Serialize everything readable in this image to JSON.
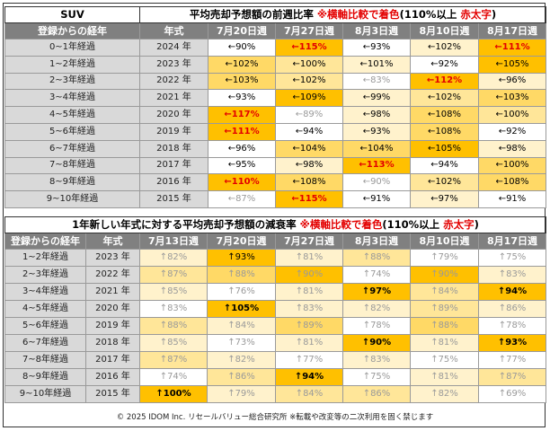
{
  "colors": {
    "level_0": "#ffffff",
    "level_1": "#fff2cc",
    "level_2": "#ffe699",
    "level_3": "#ffd966",
    "level_4": "#ffc000",
    "header_bg": "#808080",
    "label_bg": "#d9d9d9",
    "highlight_text": "#e30000"
  },
  "table1": {
    "title": {
      "segment": "SUV",
      "main": "平均売却予想額の前週比率",
      "note_red": "※横軸比較で着色",
      "note_black": "(110%以上",
      "note_red2": "赤太字",
      "note_close": ")"
    },
    "headers": [
      "登録からの経年",
      "年式",
      "7月20日週",
      "7月27日週",
      "8月3日週",
      "8月10日週",
      "8月17日週"
    ],
    "rows": [
      {
        "age": "0~1年経過",
        "year": "2024 年",
        "cells": [
          {
            "text": "←90%",
            "level": 0
          },
          {
            "text": "←115%",
            "level": 4,
            "hi": true
          },
          {
            "text": "←93%",
            "level": 0
          },
          {
            "text": "←102%",
            "level": 1
          },
          {
            "text": "←111%",
            "level": 4,
            "hi": true
          }
        ]
      },
      {
        "age": "1~2年経過",
        "year": "2023 年",
        "cells": [
          {
            "text": "←102%",
            "level": 3
          },
          {
            "text": "←100%",
            "level": 2
          },
          {
            "text": "←101%",
            "level": 1
          },
          {
            "text": "←92%",
            "level": 0
          },
          {
            "text": "←105%",
            "level": 4
          }
        ]
      },
      {
        "age": "2~3年経過",
        "year": "2022 年",
        "cells": [
          {
            "text": "←103%",
            "level": 3
          },
          {
            "text": "←102%",
            "level": 2
          },
          {
            "text": "←83%",
            "level": 0,
            "faint": true
          },
          {
            "text": "←112%",
            "level": 4,
            "hi": true
          },
          {
            "text": "←96%",
            "level": 1
          }
        ]
      },
      {
        "age": "3~4年経過",
        "year": "2021 年",
        "cells": [
          {
            "text": "←93%",
            "level": 0
          },
          {
            "text": "←109%",
            "level": 4
          },
          {
            "text": "←99%",
            "level": 1
          },
          {
            "text": "←102%",
            "level": 2
          },
          {
            "text": "←103%",
            "level": 3
          }
        ]
      },
      {
        "age": "4~5年経過",
        "year": "2020 年",
        "cells": [
          {
            "text": "←117%",
            "level": 4,
            "hi": true
          },
          {
            "text": "←89%",
            "level": 0,
            "faint": true
          },
          {
            "text": "←98%",
            "level": 1
          },
          {
            "text": "←108%",
            "level": 3
          },
          {
            "text": "←100%",
            "level": 2
          }
        ]
      },
      {
        "age": "5~6年経過",
        "year": "2019 年",
        "cells": [
          {
            "text": "←111%",
            "level": 4,
            "hi": true
          },
          {
            "text": "←94%",
            "level": 0
          },
          {
            "text": "←93%",
            "level": 1
          },
          {
            "text": "←108%",
            "level": 3
          },
          {
            "text": "←92%",
            "level": 0
          }
        ]
      },
      {
        "age": "6~7年経過",
        "year": "2018 年",
        "cells": [
          {
            "text": "←96%",
            "level": 0
          },
          {
            "text": "←104%",
            "level": 3
          },
          {
            "text": "←104%",
            "level": 3
          },
          {
            "text": "←105%",
            "level": 4
          },
          {
            "text": "←98%",
            "level": 1
          }
        ]
      },
      {
        "age": "7~8年経過",
        "year": "2017 年",
        "cells": [
          {
            "text": "←95%",
            "level": 0
          },
          {
            "text": "←98%",
            "level": 1
          },
          {
            "text": "←113%",
            "level": 4,
            "hi": true
          },
          {
            "text": "←94%",
            "level": 0
          },
          {
            "text": "←100%",
            "level": 3
          }
        ]
      },
      {
        "age": "8~9年経過",
        "year": "2016 年",
        "cells": [
          {
            "text": "←110%",
            "level": 4,
            "hi": true
          },
          {
            "text": "←108%",
            "level": 3
          },
          {
            "text": "←90%",
            "level": 0,
            "faint": true
          },
          {
            "text": "←102%",
            "level": 2
          },
          {
            "text": "←108%",
            "level": 3
          }
        ]
      },
      {
        "age": "9~10年経過",
        "year": "2015 年",
        "cells": [
          {
            "text": "←87%",
            "level": 0,
            "faint": true
          },
          {
            "text": "←115%",
            "level": 4,
            "hi": true
          },
          {
            "text": "←91%",
            "level": 0
          },
          {
            "text": "←97%",
            "level": 1
          },
          {
            "text": "←91%",
            "level": 0
          }
        ]
      }
    ]
  },
  "table2": {
    "title": {
      "main": "1年新しい年式に対する平均売却予想額の減衰率",
      "note_red": "※横軸比較で着色",
      "note_black": "(110%以上",
      "note_red2": "赤太字",
      "note_close": ")"
    },
    "headers": [
      "登録からの経年",
      "年式",
      "7月13日週",
      "7月20日週",
      "7月27日週",
      "8月3日週",
      "8月10日週",
      "8月17日週"
    ],
    "rows": [
      {
        "age": "1~2年経過",
        "year": "2023 年",
        "cells": [
          {
            "text": "↑82%",
            "level": 1,
            "faint": true
          },
          {
            "text": "↑93%",
            "level": 4
          },
          {
            "text": "↑81%",
            "level": 1,
            "faint": true
          },
          {
            "text": "↑88%",
            "level": 2,
            "faint": true
          },
          {
            "text": "↑79%",
            "level": 0,
            "faint": true
          },
          {
            "text": "↑75%",
            "level": 0,
            "faint": true
          }
        ]
      },
      {
        "age": "2~3年経過",
        "year": "2022 年",
        "cells": [
          {
            "text": "↑87%",
            "level": 2,
            "faint": true
          },
          {
            "text": "↑88%",
            "level": 3,
            "faint": true
          },
          {
            "text": "↑90%",
            "level": 4,
            "faint": true
          },
          {
            "text": "↑74%",
            "level": 0,
            "faint": true
          },
          {
            "text": "↑90%",
            "level": 4,
            "faint": true
          },
          {
            "text": "↑83%",
            "level": 1,
            "faint": true
          }
        ]
      },
      {
        "age": "3~4年経過",
        "year": "2021 年",
        "cells": [
          {
            "text": "↑85%",
            "level": 1,
            "faint": true
          },
          {
            "text": "↑76%",
            "level": 0,
            "faint": true
          },
          {
            "text": "↑81%",
            "level": 1,
            "faint": true
          },
          {
            "text": "↑97%",
            "level": 4,
            "bold": true
          },
          {
            "text": "↑84%",
            "level": 2,
            "faint": true
          },
          {
            "text": "↑94%",
            "level": 4,
            "bold": true
          }
        ]
      },
      {
        "age": "4~5年経過",
        "year": "2020 年",
        "cells": [
          {
            "text": "↑83%",
            "level": 0,
            "faint": true
          },
          {
            "text": "↑105%",
            "level": 4,
            "bold": true
          },
          {
            "text": "↑83%",
            "level": 1,
            "faint": true
          },
          {
            "text": "↑82%",
            "level": 1,
            "faint": true
          },
          {
            "text": "↑89%",
            "level": 2,
            "faint": true
          },
          {
            "text": "↑86%",
            "level": 1,
            "faint": true
          }
        ]
      },
      {
        "age": "5~6年経過",
        "year": "2019 年",
        "cells": [
          {
            "text": "↑88%",
            "level": 2,
            "faint": true
          },
          {
            "text": "↑84%",
            "level": 1,
            "faint": true
          },
          {
            "text": "↑89%",
            "level": 3,
            "faint": true
          },
          {
            "text": "↑78%",
            "level": 0,
            "faint": true
          },
          {
            "text": "↑88%",
            "level": 3,
            "faint": true
          },
          {
            "text": "↑78%",
            "level": 0,
            "faint": true
          }
        ]
      },
      {
        "age": "6~7年経過",
        "year": "2018 年",
        "cells": [
          {
            "text": "↑85%",
            "level": 1,
            "faint": true
          },
          {
            "text": "↑73%",
            "level": 0,
            "faint": true
          },
          {
            "text": "↑81%",
            "level": 1,
            "faint": true
          },
          {
            "text": "↑90%",
            "level": 4,
            "bold": true
          },
          {
            "text": "↑81%",
            "level": 1,
            "faint": true
          },
          {
            "text": "↑93%",
            "level": 4,
            "bold": true
          }
        ]
      },
      {
        "age": "7~8年経過",
        "year": "2017 年",
        "cells": [
          {
            "text": "↑87%",
            "level": 2,
            "faint": true
          },
          {
            "text": "↑82%",
            "level": 1,
            "faint": true
          },
          {
            "text": "↑77%",
            "level": 0,
            "faint": true
          },
          {
            "text": "↑83%",
            "level": 1,
            "faint": true
          },
          {
            "text": "↑75%",
            "level": 0,
            "faint": true
          },
          {
            "text": "↑77%",
            "level": 0,
            "faint": true
          }
        ]
      },
      {
        "age": "8~9年経過",
        "year": "2016 年",
        "cells": [
          {
            "text": "↑74%",
            "level": 0,
            "faint": true
          },
          {
            "text": "↑86%",
            "level": 2,
            "faint": true
          },
          {
            "text": "↑94%",
            "level": 4,
            "bold": true
          },
          {
            "text": "↑75%",
            "level": 0,
            "faint": true
          },
          {
            "text": "↑81%",
            "level": 1,
            "faint": true
          },
          {
            "text": "↑87%",
            "level": 2,
            "faint": true
          }
        ]
      },
      {
        "age": "9~10年経過",
        "year": "2015 年",
        "cells": [
          {
            "text": "↑100%",
            "level": 4,
            "bold": true
          },
          {
            "text": "↑79%",
            "level": 1,
            "faint": true
          },
          {
            "text": "↑84%",
            "level": 2,
            "faint": true
          },
          {
            "text": "↑86%",
            "level": 2,
            "faint": true
          },
          {
            "text": "↑82%",
            "level": 1,
            "faint": true
          },
          {
            "text": "↑69%",
            "level": 0,
            "faint": true
          }
        ]
      }
    ]
  },
  "footer": "© 2025 IDOM Inc. リセールバリュー総合研究所 ※転載や改変等の二次利用を固く禁じます",
  "chart_data": [
    {
      "type": "table",
      "title": "平均売却予想額の前週比率",
      "columns": [
        "7月20日週",
        "7月27日週",
        "8月3日週",
        "8月10日週",
        "8月17日週"
      ],
      "rows": [
        {
          "label": "0~1年経過 2024 年",
          "values": [
            90,
            115,
            93,
            102,
            111
          ]
        },
        {
          "label": "1~2年経過 2023 年",
          "values": [
            102,
            100,
            101,
            92,
            105
          ]
        },
        {
          "label": "2~3年経過 2022 年",
          "values": [
            103,
            102,
            83,
            112,
            96
          ]
        },
        {
          "label": "3~4年経過 2021 年",
          "values": [
            93,
            109,
            99,
            102,
            103
          ]
        },
        {
          "label": "4~5年経過 2020 年",
          "values": [
            117,
            89,
            98,
            108,
            100
          ]
        },
        {
          "label": "5~6年経過 2019 年",
          "values": [
            111,
            94,
            93,
            108,
            92
          ]
        },
        {
          "label": "6~7年経過 2018 年",
          "values": [
            96,
            104,
            104,
            105,
            98
          ]
        },
        {
          "label": "7~8年経過 2017 年",
          "values": [
            95,
            98,
            113,
            94,
            100
          ]
        },
        {
          "label": "8~9年経過 2016 年",
          "values": [
            110,
            108,
            90,
            102,
            108
          ]
        },
        {
          "label": "9~10年経過 2015 年",
          "values": [
            87,
            115,
            91,
            97,
            91
          ]
        }
      ]
    },
    {
      "type": "table",
      "title": "1年新しい年式に対する平均売却予想額の減衰率",
      "columns": [
        "7月13日週",
        "7月20日週",
        "7月27日週",
        "8月3日週",
        "8月10日週",
        "8月17日週"
      ],
      "rows": [
        {
          "label": "1~2年経過 2023 年",
          "values": [
            82,
            93,
            81,
            88,
            79,
            75
          ]
        },
        {
          "label": "2~3年経過 2022 年",
          "values": [
            87,
            88,
            90,
            74,
            90,
            83
          ]
        },
        {
          "label": "3~4年経過 2021 年",
          "values": [
            85,
            76,
            81,
            97,
            84,
            94
          ]
        },
        {
          "label": "4~5年経過 2020 年",
          "values": [
            83,
            105,
            83,
            82,
            89,
            86
          ]
        },
        {
          "label": "5~6年経過 2019 年",
          "values": [
            88,
            84,
            89,
            78,
            88,
            78
          ]
        },
        {
          "label": "6~7年経過 2018 年",
          "values": [
            85,
            73,
            81,
            90,
            81,
            93
          ]
        },
        {
          "label": "7~8年経過 2017 年",
          "values": [
            87,
            82,
            77,
            83,
            75,
            77
          ]
        },
        {
          "label": "8~9年経過 2016 年",
          "values": [
            74,
            86,
            94,
            75,
            81,
            87
          ]
        },
        {
          "label": "9~10年経過 2015 年",
          "values": [
            100,
            79,
            84,
            86,
            82,
            69
          ]
        }
      ]
    }
  ]
}
